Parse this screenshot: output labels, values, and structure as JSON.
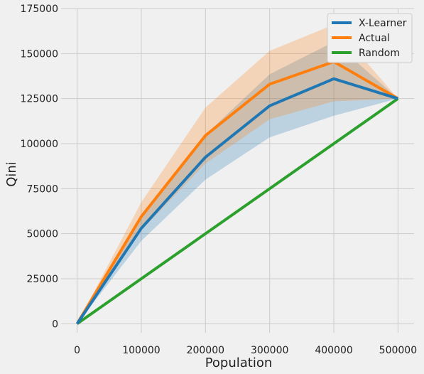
{
  "chart_data": {
    "type": "line",
    "title": "",
    "xlabel": "Population",
    "ylabel": "Qini",
    "xlim": [
      -25000,
      525000
    ],
    "ylim": [
      -5000,
      175000
    ],
    "x_ticks": [
      0,
      100000,
      200000,
      300000,
      400000,
      500000
    ],
    "x_tick_labels": [
      "0",
      "100000",
      "200000",
      "300000",
      "400000",
      "500000"
    ],
    "y_ticks": [
      0,
      25000,
      50000,
      75000,
      100000,
      125000,
      150000,
      175000
    ],
    "y_tick_labels": [
      "0",
      "25000",
      "50000",
      "75000",
      "100000",
      "125000",
      "150000",
      "175000"
    ],
    "grid": true,
    "legend_position": "top-right",
    "x": [
      0,
      100000,
      200000,
      300000,
      400000,
      500000
    ],
    "series": [
      {
        "name": "X-Learner",
        "color": "#1f77b4",
        "values": [
          0,
          53000,
          92500,
          121000,
          136000,
          125000
        ],
        "band_lower": [
          0,
          46000,
          80000,
          103500,
          115500,
          125000
        ],
        "band_upper": [
          0,
          60000,
          105000,
          138500,
          156500,
          125000
        ]
      },
      {
        "name": "Actual",
        "color": "#ff7f0e",
        "values": [
          0,
          59500,
          104500,
          133000,
          145500,
          125000
        ],
        "band_lower": [
          0,
          52000,
          89000,
          113500,
          123500,
          125000
        ],
        "band_upper": [
          0,
          67500,
          120000,
          151500,
          166000,
          125000
        ]
      },
      {
        "name": "Random",
        "color": "#2ca02c",
        "values": [
          0,
          25000,
          50000,
          75000,
          100000,
          125000
        ]
      }
    ]
  }
}
